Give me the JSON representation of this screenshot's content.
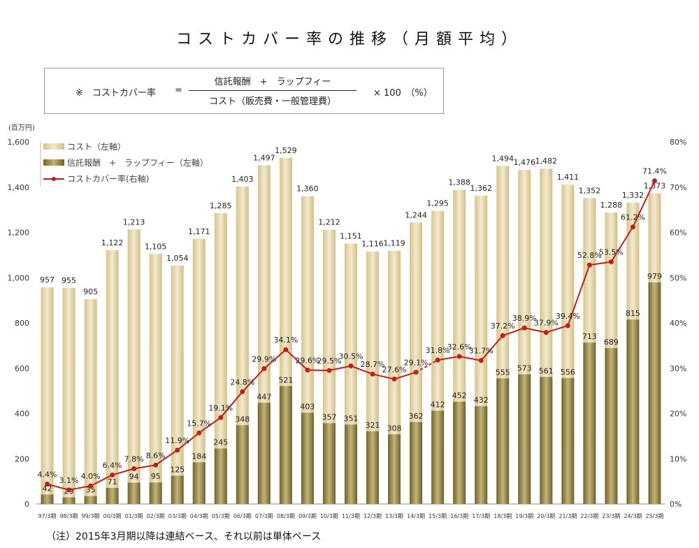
{
  "title": "コストカバー率の推移（月額平均）",
  "formula": {
    "label": "※　コストカバー率",
    "equals": "=",
    "numerator": "信託報酬　+　ラップフィー",
    "denominator": "コスト（販売費・一般管理費）",
    "multiplier": "× 100　（%）"
  },
  "note": "（注）2015年3月期以降は連結ベース、それ以前は単体ベース",
  "chart_data": {
    "type": "bar",
    "ylabel": "(百万円)",
    "ylim": [
      0,
      1600
    ],
    "y2lim": [
      0,
      80
    ],
    "yticks": [
      "0",
      "200",
      "400",
      "600",
      "800",
      "1,000",
      "1,200",
      "1,400",
      "1,600"
    ],
    "y2ticks": [
      "0%",
      "10%",
      "20%",
      "30%",
      "40%",
      "50%",
      "60%",
      "70%",
      "80%"
    ],
    "legend_placement": "top-left",
    "categories": [
      "97/3期",
      "98/3期",
      "99/3期",
      "00/3期",
      "01/3期",
      "02/3期",
      "03/3期",
      "04/3期",
      "05/3期",
      "06/3期",
      "07/3期",
      "08/3期",
      "09/3期",
      "10/3期",
      "11/3期",
      "12/3期",
      "13/3期",
      "14/3期",
      "15/3期",
      "16/3期",
      "17/3期",
      "18/3期",
      "19/3期",
      "20/3期",
      "21/3期",
      "22/3期",
      "23/3期",
      "24/3期",
      "25/3期"
    ],
    "series": [
      {
        "name": "コスト（左軸）",
        "type": "bar",
        "axis": "left",
        "color": "#e3d3a0",
        "values": [
          957,
          955,
          905,
          1122,
          1213,
          1105,
          1054,
          1171,
          1285,
          1403,
          1497,
          1529,
          1360,
          1212,
          1151,
          1116,
          1119,
          1244,
          1295,
          1388,
          1362,
          1494,
          1476,
          1482,
          1411,
          1352,
          1288,
          1332,
          1373
        ]
      },
      {
        "name": "信託報酬　+　ラップフィー（左軸）",
        "type": "bar",
        "axis": "left",
        "color": "#8a7d40",
        "values": [
          42,
          29,
          35,
          71,
          94,
          95,
          125,
          184,
          245,
          348,
          447,
          521,
          403,
          357,
          351,
          321,
          308,
          362,
          412,
          452,
          432,
          555,
          573,
          561,
          556,
          713,
          689,
          815,
          979
        ]
      },
      {
        "name": "コストカバー率(右軸)",
        "type": "line",
        "axis": "right",
        "color": "#c0201a",
        "values": [
          4.4,
          3.1,
          4.0,
          6.4,
          7.8,
          8.6,
          11.9,
          15.7,
          19.1,
          24.8,
          29.9,
          34.1,
          29.6,
          29.5,
          30.5,
          28.7,
          27.6,
          29.1,
          31.8,
          32.6,
          31.7,
          37.2,
          38.9,
          37.9,
          39.4,
          52.8,
          53.5,
          61.2,
          71.4
        ]
      }
    ]
  }
}
